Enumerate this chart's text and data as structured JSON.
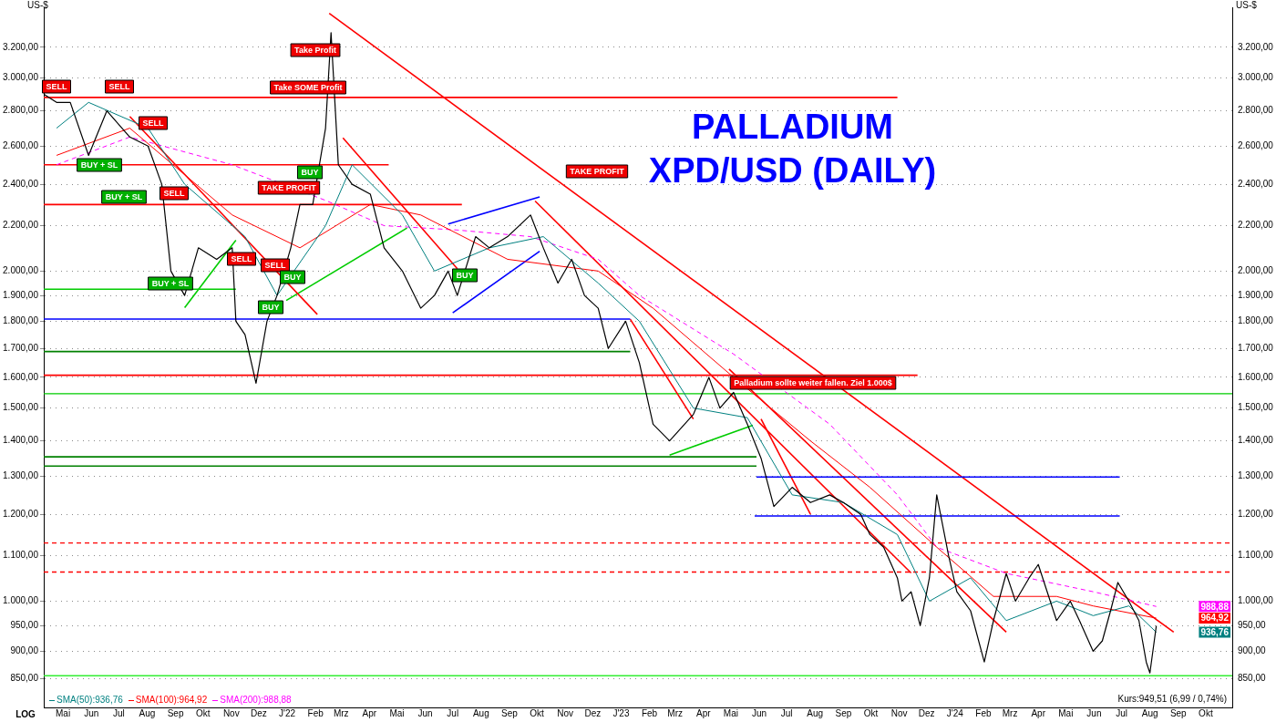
{
  "chart_data": {
    "type": "line",
    "title": "PALLADIUM",
    "subtitle": "XPD/USD (DAILY)",
    "ylabel": "US-$",
    "y2label": "US-$",
    "xlim": [
      "2021-04-24",
      "2024-11-13"
    ],
    "xticks": [
      {
        "value": "2021-05-15",
        "label": "Mai"
      },
      {
        "value": "2021-06-15",
        "label": "Jun"
      },
      {
        "value": "2021-07-15",
        "label": "Jul"
      },
      {
        "value": "2021-08-15",
        "label": "Aug"
      },
      {
        "value": "2021-09-15",
        "label": "Sep"
      },
      {
        "value": "2021-10-15",
        "label": "Okt"
      },
      {
        "value": "2021-11-15",
        "label": "Nov"
      },
      {
        "value": "2021-12-15",
        "label": "Dez"
      },
      {
        "value": "2022-01-15",
        "label": "J'22"
      },
      {
        "value": "2022-02-15",
        "label": "Feb"
      },
      {
        "value": "2022-03-15",
        "label": "Mrz"
      },
      {
        "value": "2022-04-15",
        "label": "Apr"
      },
      {
        "value": "2022-05-15",
        "label": "Mai"
      },
      {
        "value": "2022-06-15",
        "label": "Jun"
      },
      {
        "value": "2022-07-15",
        "label": "Jul"
      },
      {
        "value": "2022-08-15",
        "label": "Aug"
      },
      {
        "value": "2022-09-15",
        "label": "Sep"
      },
      {
        "value": "2022-10-15",
        "label": "Okt"
      },
      {
        "value": "2022-11-15",
        "label": "Nov"
      },
      {
        "value": "2022-12-15",
        "label": "Dez"
      },
      {
        "value": "2023-01-15",
        "label": "J'23"
      },
      {
        "value": "2023-02-15",
        "label": "Feb"
      },
      {
        "value": "2023-03-15",
        "label": "Mrz"
      },
      {
        "value": "2023-04-15",
        "label": "Apr"
      },
      {
        "value": "2023-05-15",
        "label": "Mai"
      },
      {
        "value": "2023-06-15",
        "label": "Jun"
      },
      {
        "value": "2023-07-15",
        "label": "Jul"
      },
      {
        "value": "2023-08-15",
        "label": "Aug"
      },
      {
        "value": "2023-09-15",
        "label": "Sep"
      },
      {
        "value": "2023-10-15",
        "label": "Okt"
      },
      {
        "value": "2023-11-15",
        "label": "Nov"
      },
      {
        "value": "2023-12-15",
        "label": "Dez"
      },
      {
        "value": "2024-01-15",
        "label": "J'24"
      },
      {
        "value": "2024-02-15",
        "label": "Feb"
      },
      {
        "value": "2024-03-15",
        "label": "Mrz"
      },
      {
        "value": "2024-04-15",
        "label": "Apr"
      },
      {
        "value": "2024-05-15",
        "label": "Mai"
      },
      {
        "value": "2024-06-15",
        "label": "Jun"
      },
      {
        "value": "2024-07-15",
        "label": "Jul"
      },
      {
        "value": "2024-08-15",
        "label": "Aug"
      },
      {
        "value": "2024-09-15",
        "label": "Sep"
      },
      {
        "value": "2024-10-15",
        "label": "Okt"
      }
    ],
    "ylim": [
      800,
      3480
    ],
    "yticks": [
      {
        "value": 850,
        "label": "850,00"
      },
      {
        "value": 900,
        "label": "900,00"
      },
      {
        "value": 950,
        "label": "950,00"
      },
      {
        "value": 1000,
        "label": "1.000,00"
      },
      {
        "value": 1100,
        "label": "1.100,00"
      },
      {
        "value": 1200,
        "label": "1.200,00"
      },
      {
        "value": 1300,
        "label": "1.300,00"
      },
      {
        "value": 1400,
        "label": "1.400,00"
      },
      {
        "value": 1500,
        "label": "1.500,00"
      },
      {
        "value": 1600,
        "label": "1.600,00"
      },
      {
        "value": 1700,
        "label": "1.700,00"
      },
      {
        "value": 1800,
        "label": "1.800,00"
      },
      {
        "value": 1900,
        "label": "1.900,00"
      },
      {
        "value": 2000,
        "label": "2.000,00"
      },
      {
        "value": 2200,
        "label": "2.200,00"
      },
      {
        "value": 2400,
        "label": "2.400,00"
      },
      {
        "value": 2600,
        "label": "2.600,00"
      },
      {
        "value": 2800,
        "label": "2.800,00"
      },
      {
        "value": 3000,
        "label": "3.000,00"
      },
      {
        "value": 3200,
        "label": "3.200,00"
      }
    ],
    "log": true,
    "grid": "y",
    "legend": "bottom left",
    "marker": "none",
    "line_style": "solid",
    "series": [
      {
        "color": "#000000",
        "x": [
          "2021-04-24",
          "2021-05-08",
          "2021-05-23",
          "2021-06-12",
          "2021-07-02",
          "2021-07-27",
          "2021-08-16",
          "2021-08-31",
          "2021-09-10",
          "2021-09-25",
          "2021-10-10",
          "2021-10-30",
          "2021-11-16",
          "2021-11-20",
          "2021-11-30",
          "2021-12-12",
          "2021-12-24",
          "2022-01-04",
          "2022-01-19",
          "2022-01-29",
          "2022-02-12",
          "2022-02-26",
          "2022-03-04",
          "2022-03-12",
          "2022-03-27",
          "2022-04-16",
          "2022-05-01",
          "2022-05-21",
          "2022-06-10",
          "2022-06-25",
          "2022-07-10",
          "2022-07-20",
          "2022-08-09",
          "2022-08-24",
          "2022-09-13",
          "2022-10-08",
          "2022-10-22",
          "2022-11-07",
          "2022-11-22",
          "2022-12-06",
          "2022-12-21",
          "2023-01-01",
          "2023-01-20",
          "2023-02-04",
          "2023-02-19",
          "2023-03-09",
          "2023-04-04",
          "2023-04-21",
          "2023-05-03",
          "2023-05-18",
          "2023-06-02",
          "2023-06-17",
          "2023-07-01",
          "2023-07-21",
          "2023-08-10",
          "2023-08-31",
          "2023-09-15",
          "2023-10-04",
          "2023-10-14",
          "2023-10-29",
          "2023-11-13",
          "2023-11-18",
          "2023-11-28",
          "2023-12-08",
          "2023-12-18",
          "2023-12-26",
          "2024-01-08",
          "2024-01-17",
          "2024-02-01",
          "2024-02-16",
          "2024-02-26",
          "2024-03-11",
          "2024-03-21",
          "2024-04-05",
          "2024-04-15",
          "2024-05-05",
          "2024-05-20",
          "2024-05-30",
          "2024-06-14",
          "2024-06-24",
          "2024-07-03",
          "2024-07-11",
          "2024-07-23",
          "2024-08-03",
          "2024-08-11",
          "2024-08-15",
          "2024-08-22"
        ],
        "values": [
          2900,
          2850,
          2850,
          2550,
          2800,
          2650,
          2600,
          2400,
          2000,
          1900,
          2100,
          2050,
          2100,
          1800,
          1750,
          1580,
          1800,
          1900,
          2100,
          2300,
          2300,
          2700,
          3300,
          2500,
          2400,
          2350,
          2100,
          2000,
          1850,
          1900,
          2000,
          1900,
          2150,
          2100,
          2150,
          2250,
          2100,
          1950,
          2050,
          1900,
          1850,
          1700,
          1800,
          1650,
          1450,
          1400,
          1480,
          1600,
          1500,
          1550,
          1450,
          1350,
          1220,
          1270,
          1230,
          1250,
          1230,
          1200,
          1150,
          1120,
          1050,
          1000,
          1020,
          950,
          1050,
          1250,
          1100,
          1020,
          980,
          880,
          960,
          1060,
          1000,
          1050,
          1080,
          960,
          1000,
          960,
          900,
          920,
          980,
          1040,
          1000,
          960,
          880,
          860,
          949.51
        ]
      },
      {
        "name": "SMA(50):936,76",
        "color": "#008080",
        "x": [
          "2021-05-08",
          "2021-06-12",
          "2021-08-16",
          "2021-09-25",
          "2021-11-30",
          "2022-01-04",
          "2022-02-26",
          "2022-03-27",
          "2022-05-21",
          "2022-06-25",
          "2022-08-24",
          "2022-10-22",
          "2022-12-21",
          "2023-02-04",
          "2023-04-04",
          "2023-06-02",
          "2023-07-21",
          "2023-09-15",
          "2023-11-13",
          "2023-12-18",
          "2024-02-01",
          "2024-03-11",
          "2024-05-05",
          "2024-06-14",
          "2024-07-23",
          "2024-08-22"
        ],
        "values": [
          2700,
          2850,
          2700,
          2400,
          2150,
          1900,
          2200,
          2500,
          2250,
          2000,
          2100,
          2150,
          1950,
          1800,
          1500,
          1470,
          1250,
          1230,
          1150,
          1000,
          1050,
          960,
          1000,
          970,
          990,
          936.76
        ]
      },
      {
        "name": "SMA(100):964,92",
        "color": "#ff0000",
        "x": [
          "2021-05-08",
          "2021-07-27",
          "2021-11-16",
          "2022-01-29",
          "2022-04-16",
          "2022-06-10",
          "2022-09-13",
          "2022-12-21",
          "2023-02-19",
          "2023-05-18",
          "2023-08-10",
          "2023-10-14",
          "2023-12-26",
          "2024-02-26",
          "2024-05-05",
          "2024-06-14",
          "2024-08-22"
        ],
        "values": [
          2550,
          2700,
          2250,
          2100,
          2300,
          2250,
          2050,
          2000,
          1850,
          1600,
          1400,
          1270,
          1120,
          1010,
          1010,
          990,
          964.92
        ]
      },
      {
        "name": "SMA(200):988,88",
        "color": "#ff00ff",
        "line_style": "dashed",
        "x": [
          "2021-05-08",
          "2021-07-27",
          "2021-11-16",
          "2022-02-26",
          "2022-05-01",
          "2022-07-20",
          "2022-10-08",
          "2022-12-21",
          "2023-02-04",
          "2023-05-18",
          "2023-08-31",
          "2023-11-13",
          "2023-12-26",
          "2024-03-11",
          "2024-06-14",
          "2024-08-22"
        ],
        "values": [
          2500,
          2650,
          2500,
          2320,
          2200,
          2180,
          2150,
          2050,
          1900,
          1680,
          1450,
          1250,
          1120,
          1060,
          1020,
          988.88
        ]
      },
      {
        "color": "#ff0000",
        "x": [
          "2021-04-24",
          "2023-11-13"
        ],
        "values": [
          2880,
          2880
        ]
      },
      {
        "color": "#ff0000",
        "x": [
          "2021-04-24",
          "2022-05-06"
        ],
        "values": [
          2500,
          2500
        ]
      },
      {
        "color": "#ff0000",
        "x": [
          "2021-04-24",
          "2022-07-25"
        ],
        "values": [
          2300,
          2300
        ]
      },
      {
        "color": "#00cc00",
        "x": [
          "2021-04-24",
          "2021-11-20"
        ],
        "values": [
          1925,
          1925
        ]
      },
      {
        "color": "#0000ff",
        "x": [
          "2021-04-24",
          "2023-01-25"
        ],
        "values": [
          1808,
          1808
        ]
      },
      {
        "color": "#008000",
        "x": [
          "2021-04-24",
          "2023-01-25"
        ],
        "values": [
          1689,
          1689
        ]
      },
      {
        "color": "#ff0000",
        "x": [
          "2021-04-24",
          "2023-12-05"
        ],
        "values": [
          1607,
          1607
        ]
      },
      {
        "color": "#008000",
        "x": [
          "2021-04-24",
          "2023-06-12"
        ],
        "values": [
          1354,
          1354
        ]
      },
      {
        "color": "#008000",
        "x": [
          "2021-04-24",
          "2023-06-12"
        ],
        "values": [
          1328,
          1328
        ]
      },
      {
        "color": "#0000ff",
        "x": [
          "2023-06-12",
          "2024-07-13"
        ],
        "values": [
          1298,
          1298
        ]
      },
      {
        "color": "#0000ff",
        "x": [
          "2023-06-10",
          "2024-07-13"
        ],
        "values": [
          1196,
          1196
        ]
      },
      {
        "color": "#ff0000",
        "x": [
          "2021-07-27",
          "2022-02-17"
        ],
        "values": [
          2767,
          1826
        ]
      },
      {
        "color": "#ff0000",
        "x": [
          "2022-03-17",
          "2022-07-20"
        ],
        "values": [
          2645,
          2010
        ]
      },
      {
        "color": "#ff0000",
        "x": [
          "2022-03-02",
          "2024-09-10"
        ],
        "values": [
          3436,
          937
        ]
      },
      {
        "color": "#ff0000",
        "x": [
          "2022-10-13",
          "2023-11-28"
        ],
        "values": [
          2317,
          1061
        ]
      },
      {
        "color": "#ff0000",
        "x": [
          "2023-01-25",
          "2023-04-04"
        ],
        "values": [
          1808,
          1466
        ]
      },
      {
        "color": "#ff0000",
        "x": [
          "2023-05-13",
          "2024-03-11"
        ],
        "values": [
          1628,
          937
        ]
      },
      {
        "color": "#ff0000",
        "x": [
          "2023-06-17",
          "2023-08-10"
        ],
        "values": [
          1466,
          1200
        ]
      },
      {
        "color": "#00cc00",
        "x": [
          "2021-09-25",
          "2021-11-20"
        ],
        "values": [
          1852,
          2134
        ]
      },
      {
        "color": "#00cc00",
        "x": [
          "2022-01-14",
          "2022-05-26"
        ],
        "values": [
          1880,
          2189
        ]
      },
      {
        "color": "#00cc00",
        "x": [
          "2023-03-09",
          "2023-06-08"
        ],
        "values": [
          1359,
          1447
        ]
      },
      {
        "color": "#0000ff",
        "x": [
          "2022-07-10",
          "2022-10-18"
        ],
        "values": [
          2208,
          2337
        ]
      },
      {
        "color": "#0000ff",
        "x": [
          "2022-07-15",
          "2022-10-18"
        ],
        "values": [
          1832,
          2085
        ]
      }
    ],
    "ref_lines": [
      {
        "axis": "y",
        "value": 1546,
        "color": "#00cc00"
      },
      {
        "axis": "y",
        "value": 1130,
        "color": "#ff0000",
        "line_style": "dashed"
      },
      {
        "axis": "y",
        "value": 1063,
        "color": "#ff0000",
        "line_style": "dashed"
      },
      {
        "axis": "y",
        "value": 855,
        "color": "#33ee33"
      }
    ],
    "annotations": [
      "SELL",
      "SELL",
      "SELL",
      "SELL",
      "SELL",
      "SELL",
      "Take Profit",
      "Take SOME Profit",
      "TAKE PROFIT",
      "TAKE PROFIT",
      "Palladium sollte weiter fallen. Ziel 1.000$",
      "BUY + SL",
      "BUY + SL",
      "BUY + SL",
      "BUY",
      "BUY",
      "BUY",
      "BUY",
      "LOG",
      "Kurs:949,51 (6,99 / 0,74%)",
      {
        "text": "988,88",
        "y": 988.88
      },
      {
        "text": "964,92",
        "y": 964.92
      },
      {
        "text": "936,76",
        "y": 936.76
      }
    ]
  }
}
